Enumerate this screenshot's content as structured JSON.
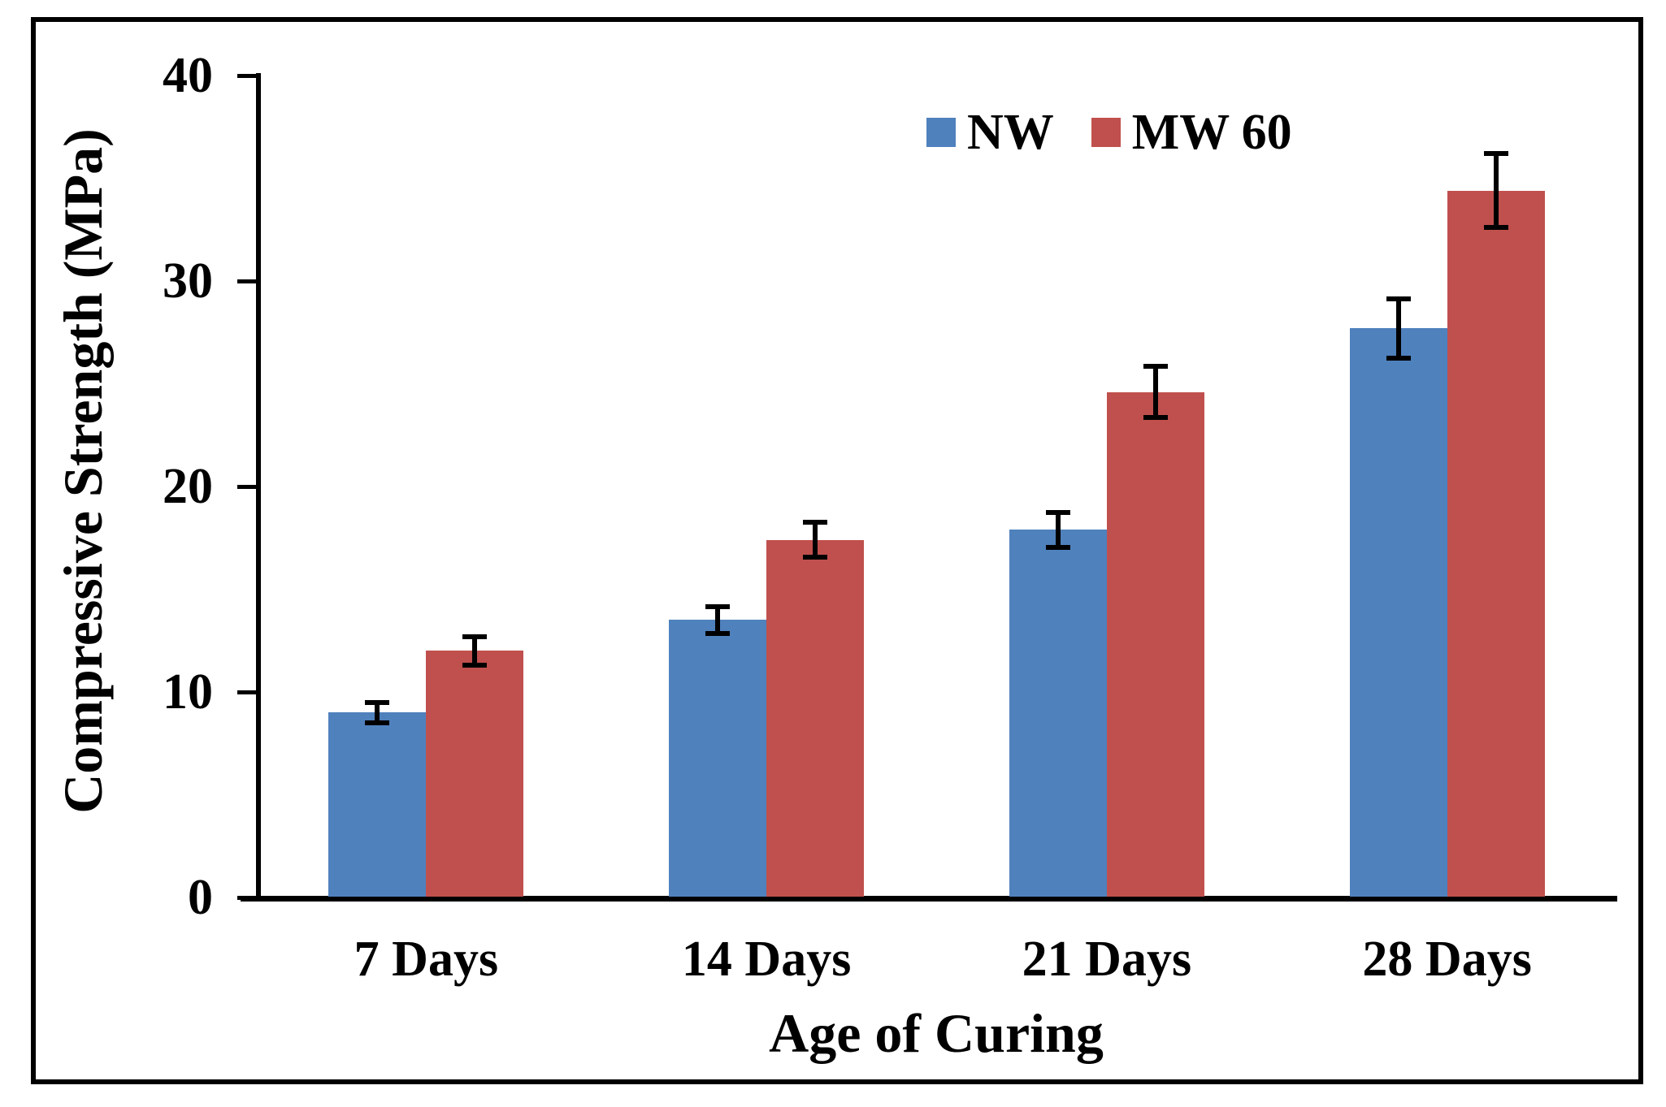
{
  "chart_data": {
    "type": "bar",
    "title": "",
    "xlabel": "Age of Curing",
    "ylabel": "Compressive Strength (MPa)",
    "categories": [
      "7 Days",
      "14 Days",
      "21 Days",
      "28 Days"
    ],
    "series": [
      {
        "name": "NW",
        "color": "#4F81BD",
        "values": [
          9.0,
          13.5,
          17.9,
          27.7
        ],
        "errors": [
          0.5,
          0.65,
          0.85,
          1.45
        ]
      },
      {
        "name": "MW 60",
        "color": "#C0504D",
        "values": [
          12.0,
          17.4,
          24.6,
          34.4
        ],
        "errors": [
          0.7,
          0.85,
          1.25,
          1.8
        ]
      }
    ],
    "ylim": [
      0,
      40
    ],
    "yticks": [
      0,
      10,
      20,
      30,
      40
    ],
    "grid": false,
    "legend_position": "top-right",
    "error_bars": true,
    "axis_color": "#000000",
    "background_color": "#ffffff"
  }
}
